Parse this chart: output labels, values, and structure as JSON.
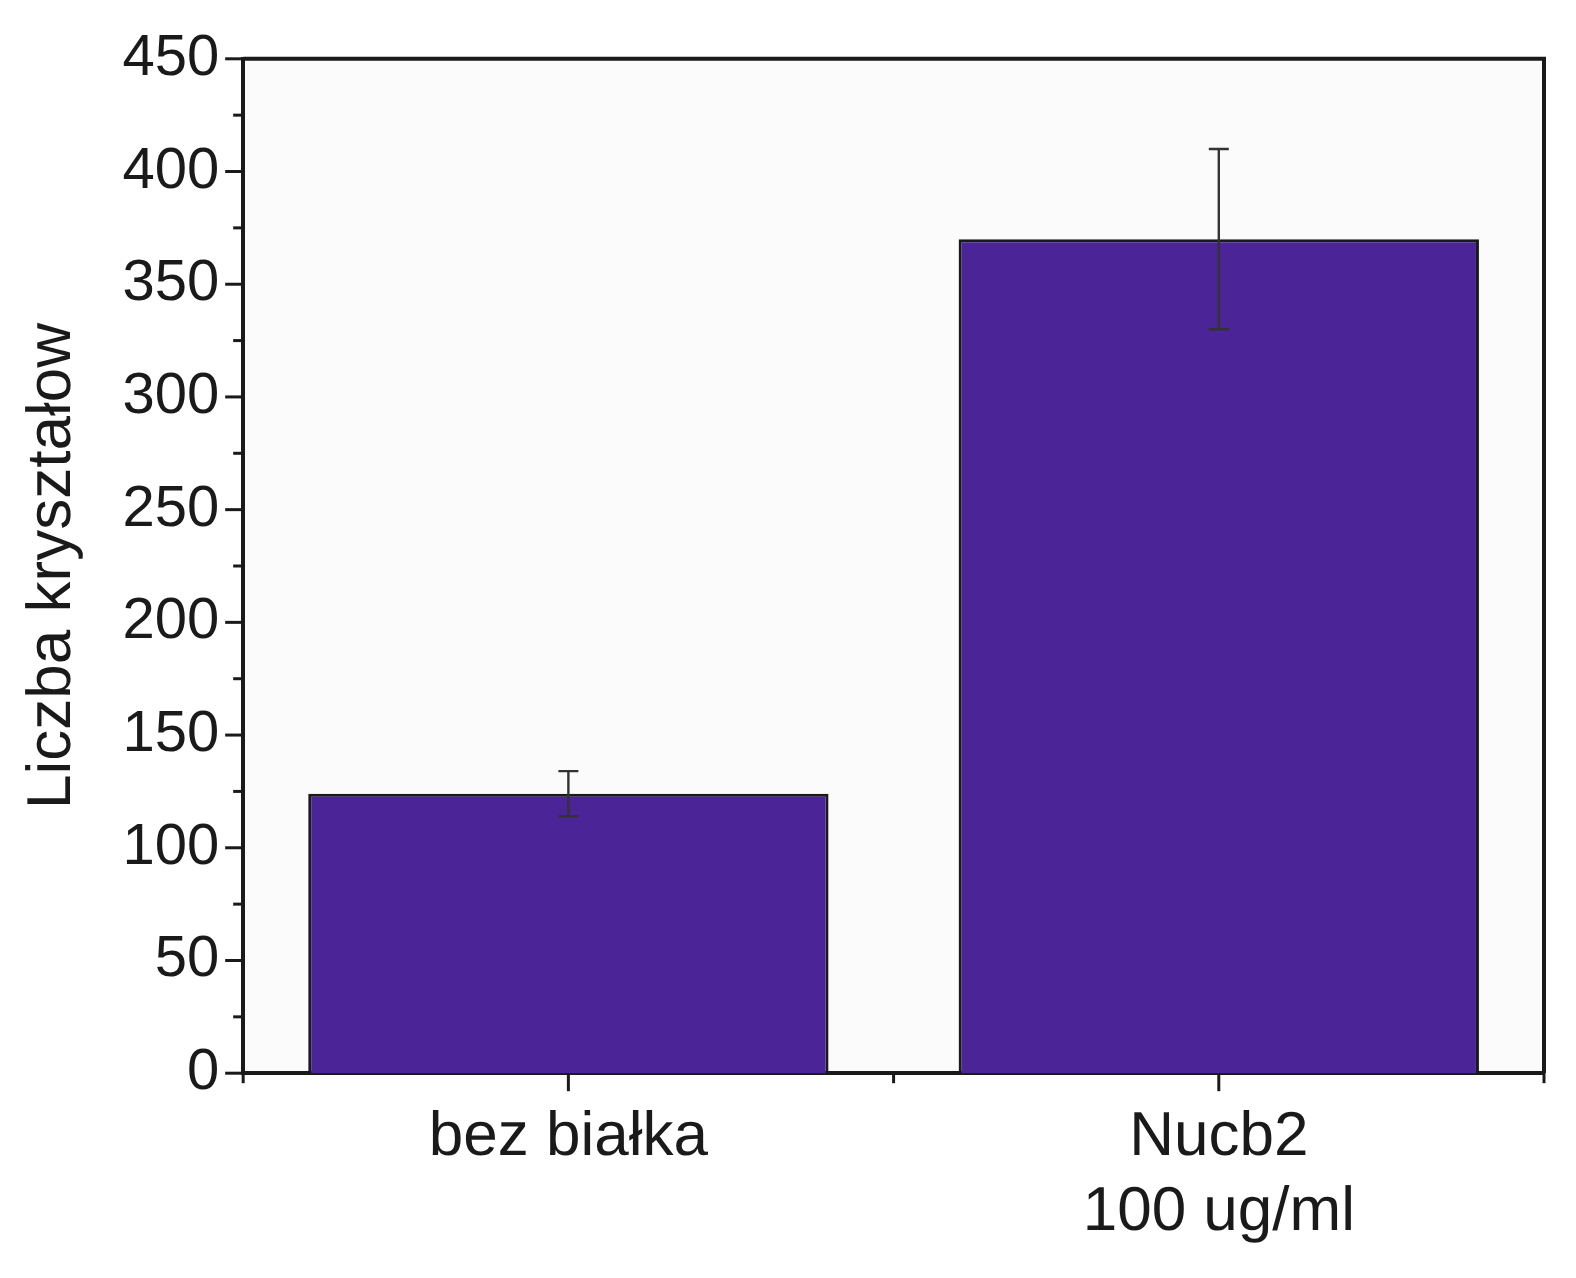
{
  "chart_data": {
    "type": "bar",
    "ylabel": "Liczba kryształow",
    "categories": [
      "bez białka",
      "Nucb2\n100 ug/ml"
    ],
    "values": [
      124,
      370
    ],
    "errors": [
      10,
      40
    ],
    "color": "#4b2597",
    "ylim": [
      0,
      450
    ],
    "yticks": [
      0,
      {
        "value": 25,
        "label": null
      },
      50,
      {
        "value": 75,
        "label": null
      },
      100,
      {
        "value": 125,
        "label": null
      },
      150,
      {
        "value": 175,
        "label": null
      },
      200,
      {
        "value": 225,
        "label": null
      },
      250,
      {
        "value": 275,
        "label": null
      },
      300,
      {
        "value": 325,
        "label": null
      },
      350,
      {
        "value": 375,
        "label": null
      },
      400,
      {
        "value": 425,
        "label": null
      },
      450
    ],
    "grid": false,
    "legend": false
  }
}
